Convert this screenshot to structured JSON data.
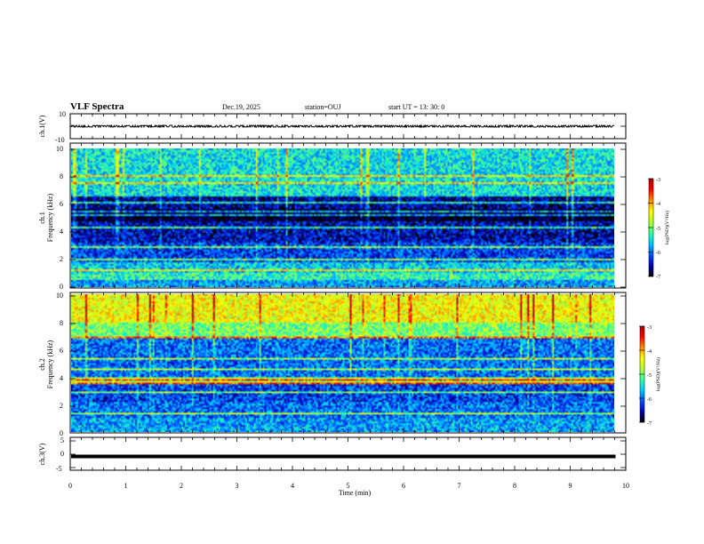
{
  "header": {
    "title": "VLF Spectra",
    "date": "Dec.19, 2025",
    "station": "station=OUJ",
    "start": "start  UT =   13: 30: 0"
  },
  "colors": {
    "colormap": [
      "#000000",
      "#0000b4",
      "#0050ff",
      "#00c8ff",
      "#32ffa0",
      "#b4ff32",
      "#ffff00",
      "#ff8c00",
      "#ff0000",
      "#aa0000"
    ],
    "waveform": "#000000",
    "frame": "#000000"
  },
  "chart_data": [
    {
      "type": "line",
      "panel": "ch1-waveform",
      "ylabel": "ch.1(V)",
      "ylim": [
        -10,
        10
      ],
      "y_ticks": [
        "10",
        "-10"
      ],
      "xlim": [
        0,
        10
      ],
      "mean": 0,
      "amplitude_band": [
        -0.7,
        0.7
      ],
      "data_end_min": 9.8
    },
    {
      "type": "heatmap",
      "panel": "ch1-spectrogram",
      "ylabel": "ch.1\nFrequency  (kHz)",
      "ylim": [
        0,
        10
      ],
      "y_ticks": [
        "0",
        "2",
        "4",
        "6",
        "8",
        "10"
      ],
      "xlim": [
        0,
        10
      ],
      "data_end_min": 9.8,
      "colorbar": {
        "label": "log(PSD)(V²/Hz)",
        "range": [
          -7,
          -3
        ],
        "ticks": [
          "-3",
          "-4",
          "-5",
          "-6",
          "-7"
        ]
      },
      "description_bands_kHz_logPSD": [
        [
          0,
          0.5,
          -5.8
        ],
        [
          0.5,
          1.0,
          -5.3
        ],
        [
          1.0,
          1.8,
          -5.6
        ],
        [
          1.8,
          3.2,
          -6.2
        ],
        [
          3.2,
          4.8,
          -6.5
        ],
        [
          4.8,
          5.6,
          -7.0
        ],
        [
          5.6,
          6.6,
          -6.6
        ],
        [
          6.6,
          10,
          -5.5
        ]
      ],
      "tonal_lines_kHz": [
        1.2,
        1.5,
        1.9,
        2.9,
        3.3,
        3.7,
        4.3,
        4.6,
        5.2,
        5.5,
        5.9,
        6.1,
        7.5,
        8.1
      ]
    },
    {
      "type": "heatmap",
      "panel": "ch2-spectrogram",
      "ylabel": "ch.2\nFrequency  (kHz)",
      "ylim": [
        0,
        10
      ],
      "y_ticks": [
        "0",
        "2",
        "4",
        "6",
        "8",
        "10"
      ],
      "xlim": [
        0,
        10
      ],
      "data_end_min": 9.8,
      "colorbar": {
        "label": "log(PSD)(V²/Hz)",
        "range": [
          -7,
          -3
        ],
        "ticks": [
          "-3",
          "-4",
          "-5",
          "-6",
          "-7"
        ]
      },
      "description_bands_kHz_logPSD": [
        [
          0,
          1.0,
          -5.8
        ],
        [
          1.0,
          2.2,
          -6.0
        ],
        [
          2.2,
          3.4,
          -6.2
        ],
        [
          3.4,
          4.0,
          -4.8
        ],
        [
          4.0,
          6.8,
          -6.0
        ],
        [
          6.8,
          8.0,
          -5.0
        ],
        [
          8.0,
          10,
          -4.4
        ]
      ],
      "tonal_lines_kHz": [
        1.3,
        2.0,
        2.9,
        3.5,
        3.8,
        4.1,
        4.5,
        5.3,
        6.3,
        6.9
      ]
    },
    {
      "type": "line",
      "panel": "ch3-waveform",
      "ylabel": "ch.3(V)",
      "ylim": [
        -5,
        5
      ],
      "y_ticks": [
        "5",
        "0",
        "-5"
      ],
      "xlim": [
        0,
        10
      ],
      "value": -0.8,
      "data_end_min": 9.8
    }
  ],
  "xaxis": {
    "label": "Time  (min)",
    "ticks": [
      "0",
      "1",
      "2",
      "3",
      "4",
      "5",
      "6",
      "7",
      "8",
      "9",
      "10"
    ]
  }
}
